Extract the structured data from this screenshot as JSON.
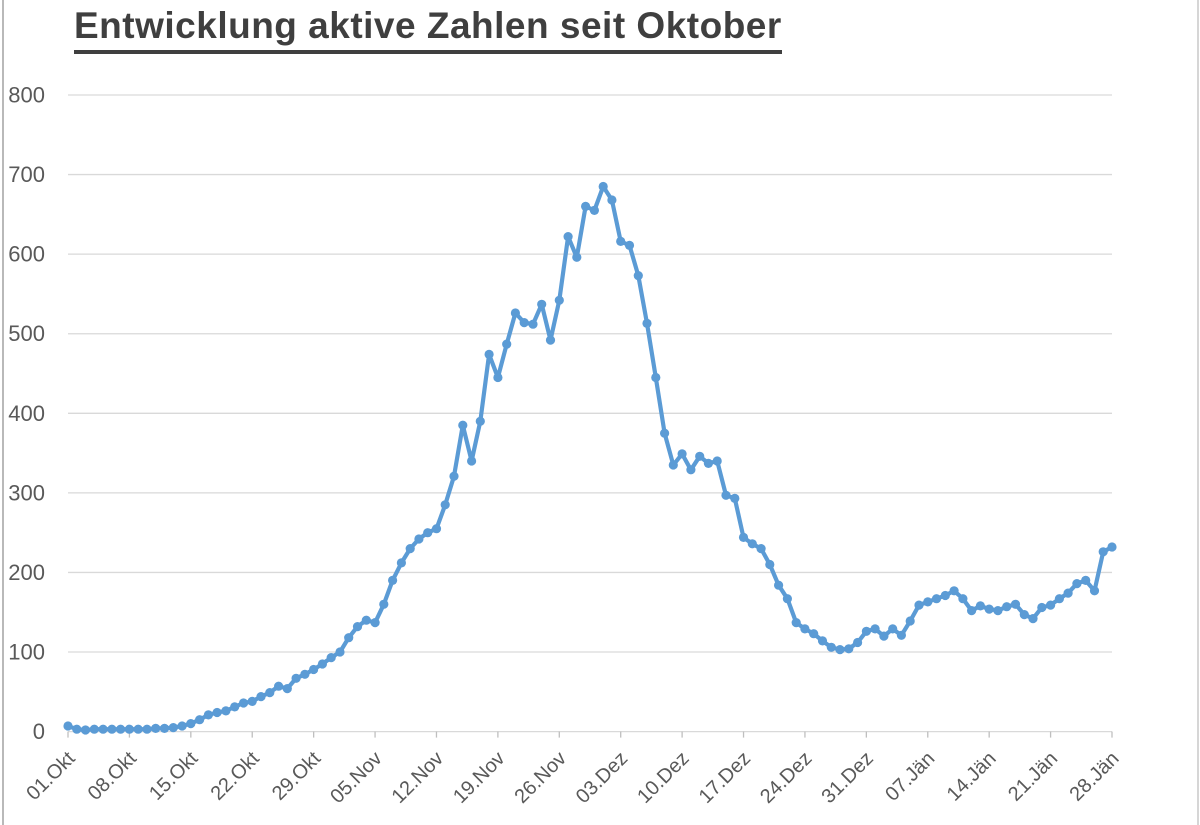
{
  "title": "Entwicklung aktive Zahlen seit Oktober",
  "colors": {
    "series": "#5B9BD5",
    "gridline": "#d9d9d9",
    "tick_mark": "#bfbfbf",
    "axis_text": "#595959",
    "title_text": "#3f3f3f"
  },
  "chart_data": {
    "type": "line",
    "title": "Entwicklung aktive Zahlen seit Oktober",
    "xlabel": "",
    "ylabel": "",
    "ylim": [
      0,
      800
    ],
    "y_ticks": [
      "0",
      "100",
      "200",
      "300",
      "400",
      "500",
      "600",
      "700",
      "800"
    ],
    "grid": "horizontal",
    "legend": "none",
    "marker": "circle",
    "x_tick_labels": [
      "01.Okt",
      "08.Okt",
      "15.Okt",
      "22.Okt",
      "29.Okt",
      "05.Nov",
      "12.Nov",
      "19.Nov",
      "26.Nov",
      "03.Dez",
      "10.Dez",
      "17.Dez",
      "24.Dez",
      "31.Dez",
      "07.Jän",
      "14.Jän",
      "21.Jän",
      "28.Jän"
    ],
    "x_tick_days": [
      0,
      7,
      14,
      21,
      28,
      35,
      42,
      49,
      56,
      63,
      70,
      77,
      84,
      91,
      98,
      105,
      112,
      119
    ],
    "values": [
      7,
      3,
      2,
      3,
      3,
      3,
      3,
      3,
      3,
      3,
      4,
      4,
      5,
      7,
      10,
      15,
      21,
      24,
      26,
      31,
      36,
      38,
      44,
      49,
      57,
      54,
      67,
      72,
      78,
      85,
      93,
      100,
      118,
      132,
      140,
      137,
      160,
      190,
      212,
      230,
      242,
      250,
      255,
      285,
      321,
      385,
      340,
      390,
      474,
      445,
      487,
      526,
      514,
      512,
      537,
      492,
      542,
      622,
      596,
      660,
      655,
      685,
      668,
      616,
      611,
      573,
      513,
      445,
      375,
      335,
      349,
      329,
      346,
      337,
      340,
      297,
      293,
      244,
      236,
      230,
      210,
      184,
      167,
      137,
      129,
      123,
      114,
      106,
      103,
      104,
      112,
      126,
      129,
      120,
      129,
      121,
      139,
      159,
      163,
      167,
      171,
      177,
      167,
      152,
      158,
      154,
      152,
      157,
      160,
      147,
      142,
      156,
      159,
      167,
      174,
      186,
      190,
      177,
      226,
      232
    ]
  }
}
